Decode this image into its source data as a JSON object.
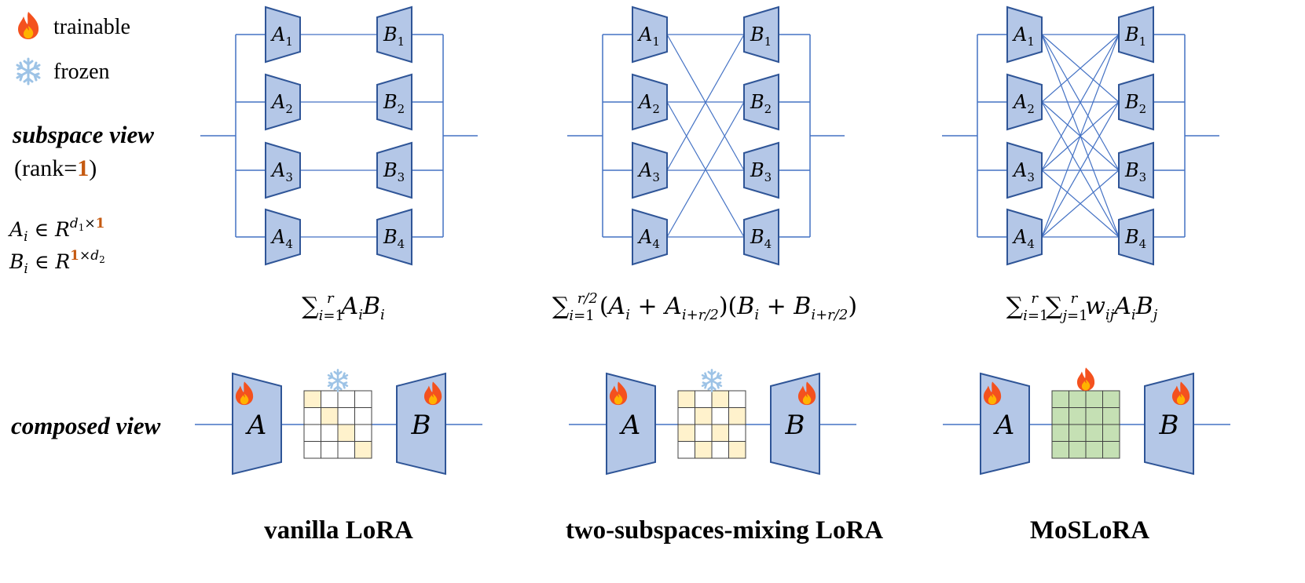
{
  "legend": {
    "trainable_label": "trainable",
    "frozen_label": "frozen",
    "trainable_icon": "flame-icon",
    "frozen_icon": "snowflake-icon"
  },
  "row_labels": {
    "subspace_view": "subspace view",
    "rank_prefix": "(rank=",
    "rank_value": "1",
    "rank_suffix": ")",
    "composed_view": "composed view"
  },
  "dims": {
    "a": {
      "sym": "A",
      "sub": "i",
      "in": "∈",
      "space": "R",
      "d": "d",
      "dsub": "1",
      "times": "×",
      "r": "1"
    },
    "b": {
      "sym": "B",
      "sub": "i",
      "in": "∈",
      "space": "R",
      "r": "1",
      "times": "×",
      "d": "d",
      "dsub": "2"
    }
  },
  "blocks": {
    "a_labels": [
      "A",
      "A",
      "A",
      "A"
    ],
    "a_subs": [
      "1",
      "2",
      "3",
      "4"
    ],
    "b_labels": [
      "B",
      "B",
      "B",
      "B"
    ],
    "b_subs": [
      "1",
      "2",
      "3",
      "4"
    ],
    "composed_a": "A",
    "composed_b": "B"
  },
  "formulas": {
    "vanilla": "∑ᵢ₌₁ʳ AᵢBᵢ",
    "mixing": "∑ᵢ₌₁ʳᐟ² (Aᵢ + Aᵢ₊ᵣ/₂)(Bᵢ + Bᵢ₊ᵣ/₂)",
    "moslora": "∑ᵢ₌₁ʳ ∑ⱼ₌₁ʳ wᵢⱼAᵢBⱼ"
  },
  "titles": {
    "vanilla": "vanilla LoRA",
    "mixing": "two-subspaces-mixing LoRA",
    "moslora": "MoSLoRA"
  },
  "colors": {
    "block_fill": "#b4c7e7",
    "block_stroke": "#2f5597",
    "line": "#4472c4",
    "rank_accent": "#c55a11",
    "frozen_cell": "#fff2cc",
    "trainable_cell": "#c5e0b4",
    "snowflake": "#9dc3e6",
    "flame_outer": "#f4511e",
    "flame_inner": "#ffb300"
  }
}
